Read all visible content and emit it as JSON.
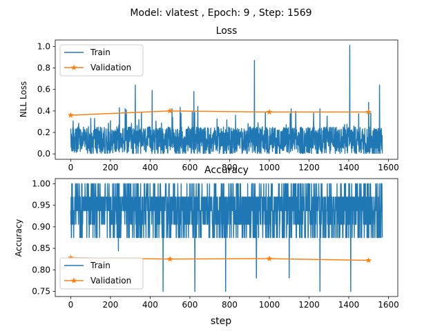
{
  "figure": {
    "suptitle": "Model: vlatest , Epoch: 9 , Step: 1569",
    "xlabel": "step"
  },
  "chart_data": [
    {
      "type": "line",
      "title": "Loss",
      "xlabel": "",
      "ylabel": "NLL Loss",
      "xlim": [
        -78,
        1647
      ],
      "ylim": [
        -0.05,
        1.06
      ],
      "xticks": [
        0,
        200,
        400,
        600,
        800,
        1000,
        1200,
        1400,
        1600
      ],
      "yticks": [
        0.0,
        0.2,
        0.4,
        0.6,
        0.8,
        1.0
      ],
      "ytick_format": 1,
      "legend": {
        "placement": "top-left"
      },
      "series": [
        {
          "name": "Train",
          "color": "#1f77b4",
          "marker": "none",
          "kind": "noisy",
          "n": 1570,
          "baseline": 0.11,
          "spread": 0.13,
          "floor": 0.005,
          "ceiling": 0.5,
          "spikes": [
            [
              10,
              0.24
            ],
            [
              120,
              0.33
            ],
            [
              200,
              0.31
            ],
            [
              245,
              0.43
            ],
            [
              280,
              0.41
            ],
            [
              325,
              0.64
            ],
            [
              410,
              0.59
            ],
            [
              510,
              0.42
            ],
            [
              620,
              0.58
            ],
            [
              640,
              0.44
            ],
            [
              830,
              0.36
            ],
            [
              925,
              0.87
            ],
            [
              980,
              0.39
            ],
            [
              1110,
              0.42
            ],
            [
              1255,
              0.42
            ],
            [
              1405,
              1.01
            ],
            [
              1500,
              0.48
            ],
            [
              1555,
              0.64
            ]
          ]
        },
        {
          "name": "Validation",
          "color": "#ff7f0e",
          "marker": "star",
          "x": [
            0,
            500,
            1000,
            1500
          ],
          "y": [
            0.36,
            0.4,
            0.39,
            0.39
          ]
        }
      ]
    },
    {
      "type": "line",
      "title": "Accuracy",
      "xlabel": "step",
      "ylabel": "Accuracy",
      "xlim": [
        -78,
        1647
      ],
      "ylim": [
        0.738,
        1.012
      ],
      "xticks": [
        0,
        200,
        400,
        600,
        800,
        1000,
        1200,
        1400,
        1600
      ],
      "yticks": [
        0.75,
        0.8,
        0.85,
        0.9,
        0.95,
        1.0
      ],
      "ytick_format": 2,
      "legend": {
        "placement": "lower-left"
      },
      "series": [
        {
          "name": "Train",
          "color": "#1f77b4",
          "marker": "none",
          "kind": "discrete",
          "n": 1570,
          "levels": [
            1.0,
            0.969,
            0.969,
            0.9375,
            0.9375,
            0.906,
            0.875
          ],
          "dips": [
            [
              240,
              0.844
            ],
            [
              465,
              0.75
            ],
            [
              625,
              0.75
            ],
            [
              780,
              0.75
            ],
            [
              935,
              0.781
            ],
            [
              1100,
              0.781
            ],
            [
              1255,
              0.75
            ],
            [
              1410,
              0.75
            ]
          ]
        },
        {
          "name": "Validation",
          "color": "#ff7f0e",
          "marker": "star",
          "x": [
            0,
            500,
            1000,
            1500
          ],
          "y": [
            0.828,
            0.825,
            0.826,
            0.822
          ]
        }
      ]
    }
  ]
}
